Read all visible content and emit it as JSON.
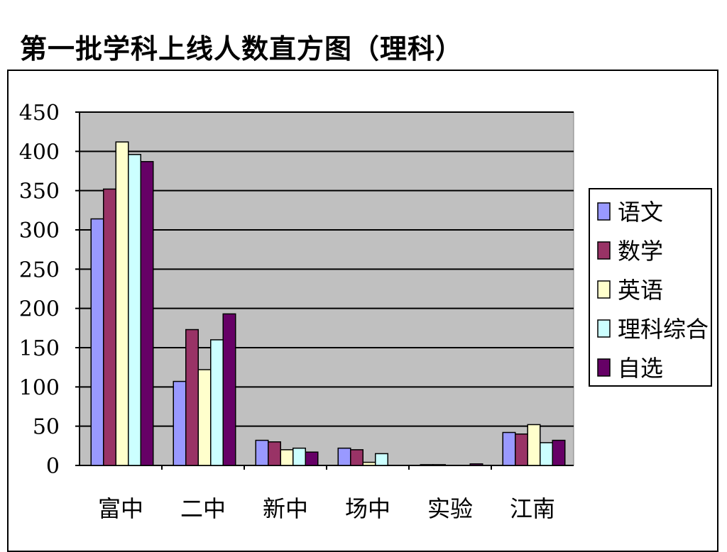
{
  "page": {
    "title": "第一批学科上线人数直方图（理科）"
  },
  "chart_data": {
    "type": "bar",
    "title": "",
    "xlabel": "",
    "ylabel": "",
    "categories": [
      "富中",
      "二中",
      "新中",
      "场中",
      "实验",
      "江南"
    ],
    "ylim": [
      0,
      450
    ],
    "yticks": [
      0,
      50,
      100,
      150,
      200,
      250,
      300,
      350,
      400,
      450
    ],
    "grid": true,
    "legend_position": "right",
    "plot_background": "#c0c0c0",
    "series": [
      {
        "name": "语文",
        "color": "#9999ff",
        "values": [
          314,
          107,
          32,
          22,
          1,
          42
        ]
      },
      {
        "name": "数学",
        "color": "#993366",
        "values": [
          352,
          173,
          30,
          20,
          1,
          40
        ]
      },
      {
        "name": "英语",
        "color": "#ffffcc",
        "values": [
          412,
          122,
          20,
          4,
          0,
          52
        ]
      },
      {
        "name": "理科综合",
        "color": "#ccffff",
        "values": [
          396,
          160,
          22,
          15,
          0,
          29
        ]
      },
      {
        "name": "自选",
        "color": "#660066",
        "values": [
          387,
          193,
          17,
          0,
          2,
          32
        ]
      }
    ]
  }
}
